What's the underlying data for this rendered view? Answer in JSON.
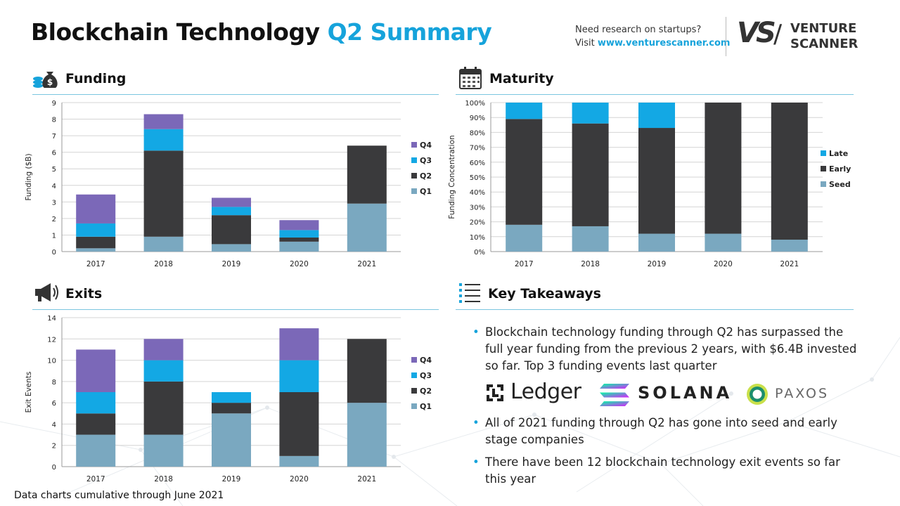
{
  "header": {
    "title_main": "Blockchain Technology",
    "title_accent": "Q2 Summary",
    "research_line1": "Need research on startups?",
    "research_visit": "Visit ",
    "research_url": "www.venturescanner.com",
    "brand_mark": "VS",
    "brand_line1": "VENTURE",
    "brand_line2": "SCANNER"
  },
  "sections": {
    "funding": "Funding",
    "maturity": "Maturity",
    "exits": "Exits",
    "takeaways": "Key Takeaways"
  },
  "footer": "Data charts cumulative through June 2021",
  "takeaways": {
    "bullet_char": "•",
    "items": [
      "Blockchain technology funding through Q2 has surpassed the full year funding from the previous 2 years, with $6.4B invested so far. Top 3 funding events last quarter",
      "All of 2021 funding through Q2 has gone into seed and early stage companies",
      "There have been 12 blockchain technology exit events so far this year"
    ],
    "logos": [
      "Ledger",
      "SOLANA",
      "PAXOS"
    ]
  },
  "colors": {
    "accent": "#16a3db",
    "q1": "#7aa8c0",
    "q2": "#3a3a3c",
    "q3": "#13a8e4",
    "q4": "#7b68b8",
    "seed": "#7aa8c0",
    "early": "#3a3a3c",
    "late": "#13a8e4"
  },
  "chart_data": [
    {
      "id": "funding",
      "type": "bar",
      "stacked": true,
      "categories": [
        "2017",
        "2018",
        "2019",
        "2020",
        "2021"
      ],
      "series": [
        {
          "name": "Q1",
          "values": [
            0.2,
            0.9,
            0.45,
            0.6,
            2.9
          ]
        },
        {
          "name": "Q2",
          "values": [
            0.7,
            5.2,
            1.75,
            0.25,
            3.5
          ]
        },
        {
          "name": "Q3",
          "values": [
            0.8,
            1.3,
            0.5,
            0.45,
            0
          ]
        },
        {
          "name": "Q4",
          "values": [
            1.75,
            0.9,
            0.55,
            0.6,
            0
          ]
        }
      ],
      "ylabel": "Funding ($B)",
      "ylim": [
        0,
        9
      ],
      "yticks": [
        "0",
        "1",
        "2",
        "3",
        "4",
        "5",
        "6",
        "7",
        "8",
        "9"
      ],
      "legend_order": [
        "Q4",
        "Q3",
        "Q2",
        "Q1"
      ],
      "legend": "right",
      "grid": true
    },
    {
      "id": "maturity",
      "type": "bar",
      "stacked": true,
      "percent": true,
      "categories": [
        "2017",
        "2018",
        "2019",
        "2020",
        "2021"
      ],
      "series": [
        {
          "name": "Seed",
          "values": [
            18,
            17,
            12,
            12,
            8
          ]
        },
        {
          "name": "Early",
          "values": [
            71,
            69,
            71,
            88,
            92
          ]
        },
        {
          "name": "Late",
          "values": [
            11,
            14,
            17,
            0,
            0
          ]
        }
      ],
      "ylabel": "Funding Concentration",
      "ylim": [
        0,
        100
      ],
      "yticks": [
        "0%",
        "10%",
        "20%",
        "30%",
        "40%",
        "50%",
        "60%",
        "70%",
        "80%",
        "90%",
        "100%"
      ],
      "legend_order": [
        "Late",
        "Early",
        "Seed"
      ],
      "legend": "right",
      "grid": true
    },
    {
      "id": "exits",
      "type": "bar",
      "stacked": true,
      "categories": [
        "2017",
        "2018",
        "2019",
        "2020",
        "2021"
      ],
      "series": [
        {
          "name": "Q1",
          "values": [
            3,
            3,
            5,
            1,
            6
          ]
        },
        {
          "name": "Q2",
          "values": [
            2,
            5,
            1,
            6,
            6
          ]
        },
        {
          "name": "Q3",
          "values": [
            2,
            2,
            1,
            3,
            0
          ]
        },
        {
          "name": "Q4",
          "values": [
            4,
            2,
            0,
            3,
            0
          ]
        }
      ],
      "ylabel": "Exit Events",
      "ylim": [
        0,
        14
      ],
      "yticks": [
        "0",
        "2",
        "4",
        "6",
        "8",
        "10",
        "12",
        "14"
      ],
      "legend_order": [
        "Q4",
        "Q3",
        "Q2",
        "Q1"
      ],
      "legend": "right",
      "grid": true
    }
  ]
}
